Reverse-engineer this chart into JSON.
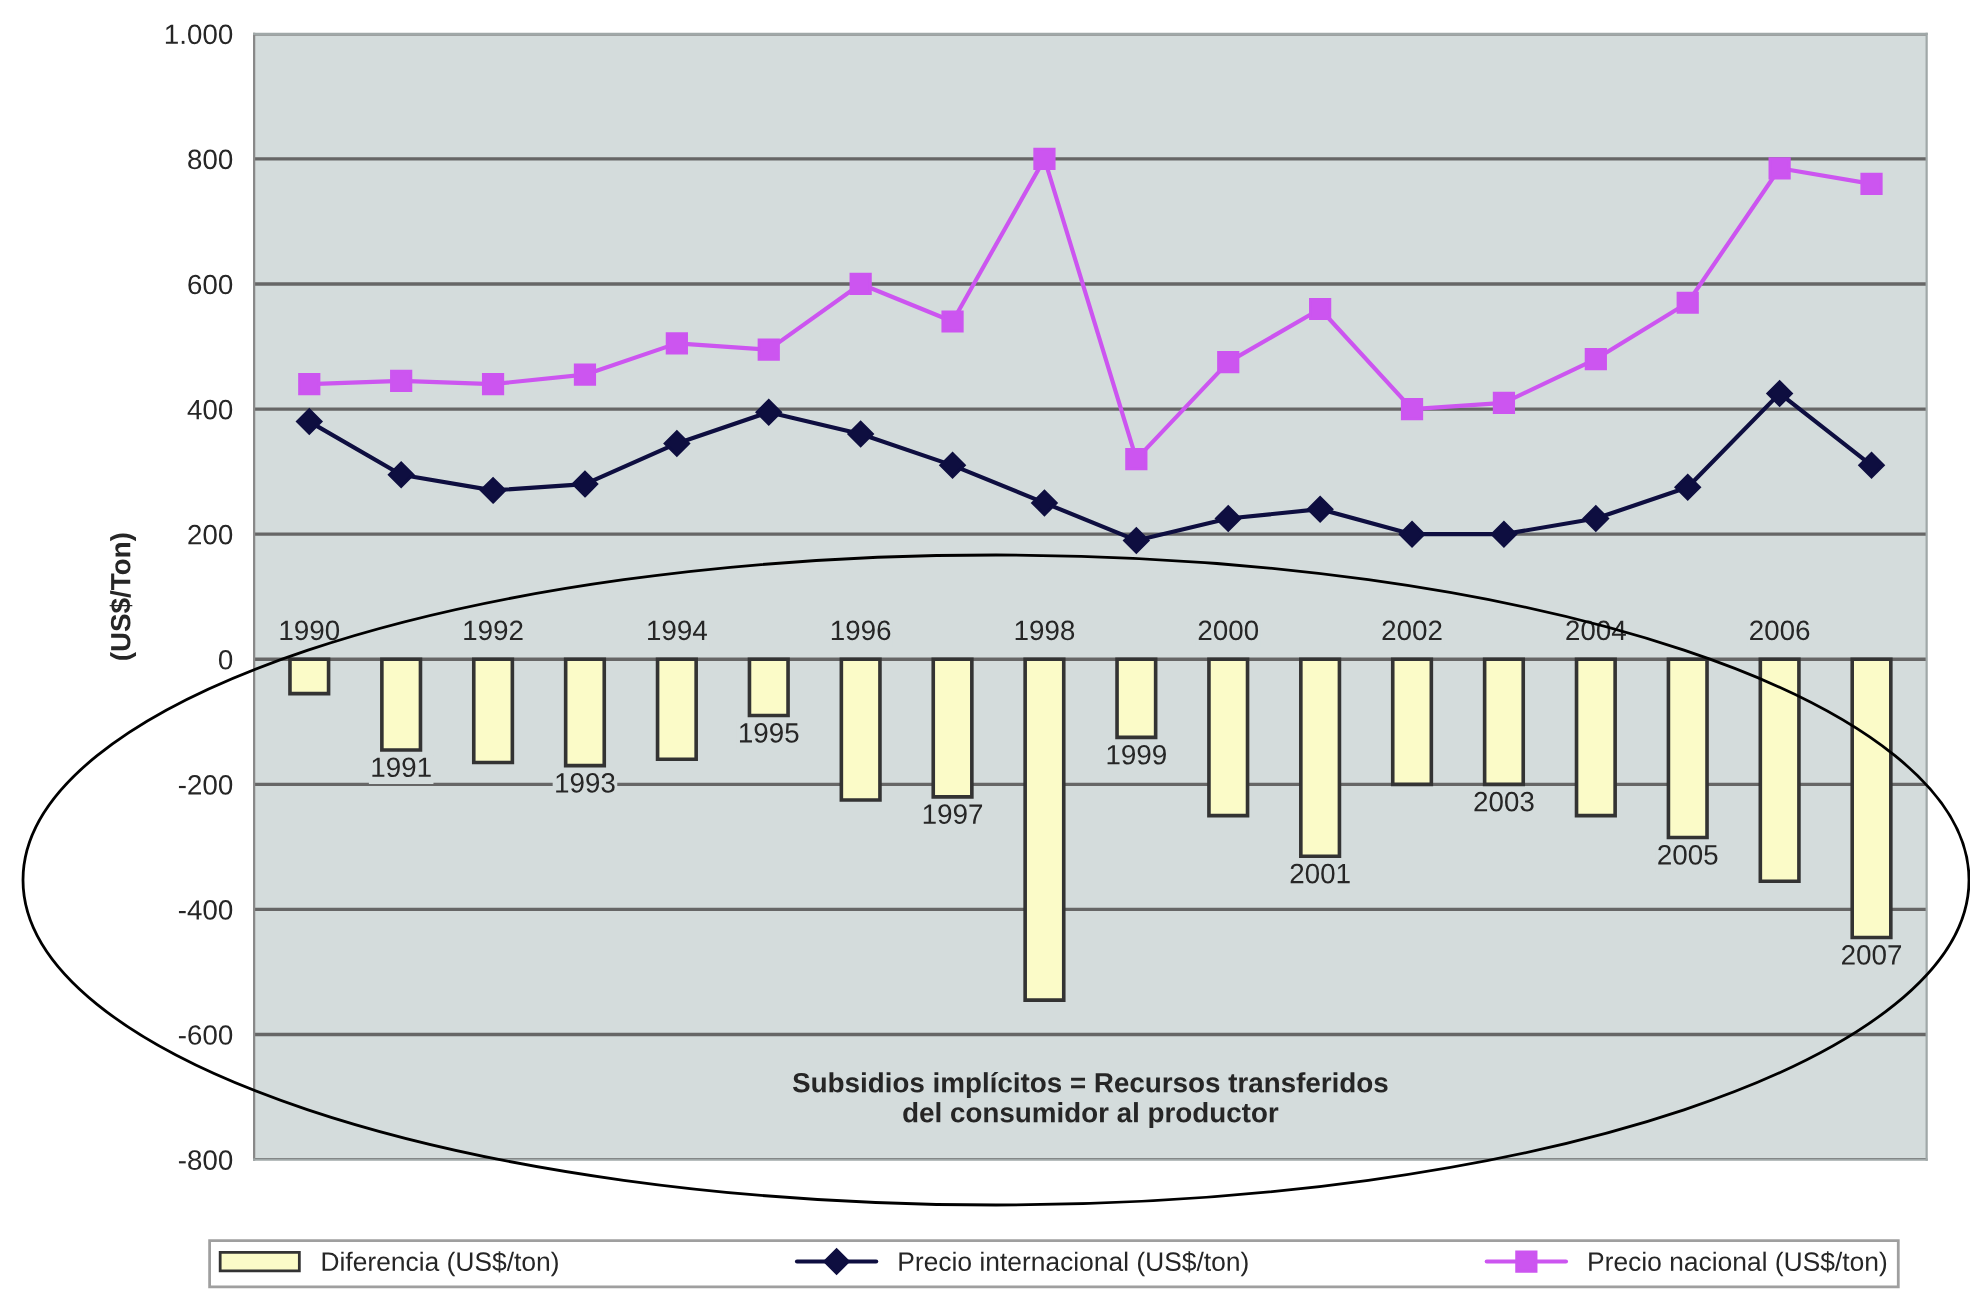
{
  "chart_data": {
    "type": "bar",
    "ylabel": "(US$/Ton)",
    "categories": [
      "1990",
      "1991",
      "1992",
      "1993",
      "1994",
      "1995",
      "1996",
      "1997",
      "1998",
      "1999",
      "2000",
      "2001",
      "2002",
      "2003",
      "2004",
      "2005",
      "2006",
      "2007"
    ],
    "series": [
      {
        "name": "Diferencia (US$/ton)",
        "color": "#fbfbc8",
        "values": [
          -55,
          -145,
          -165,
          -170,
          -160,
          -90,
          -225,
          -220,
          -545,
          -125,
          -250,
          -315,
          -200,
          -200,
          -250,
          -285,
          -355,
          -445
        ]
      },
      {
        "type": "line",
        "name": "Precio internacional (US$/ton)",
        "color": "#0e0e40",
        "marker": "diamond",
        "values": [
          380,
          295,
          270,
          280,
          345,
          395,
          360,
          310,
          250,
          190,
          225,
          240,
          200,
          200,
          225,
          275,
          425,
          310
        ]
      },
      {
        "type": "line",
        "name": "Precio nacional (US$/ton)",
        "color": "#cc55f0",
        "marker": "square",
        "values": [
          440,
          445,
          440,
          455,
          505,
          495,
          600,
          540,
          800,
          320,
          475,
          560,
          400,
          410,
          480,
          570,
          785,
          760
        ]
      }
    ],
    "ylim": [
      -800,
      1000
    ],
    "yticks": [
      -800,
      -600,
      -400,
      -200,
      0,
      200,
      400,
      600,
      800,
      {
        "value": 1000,
        "label": "1.000"
      }
    ],
    "grid": "y",
    "legend": "bottom",
    "annotations": [
      "Subsidios implícitos = Recursos transferidos\ndel consumidor al productor"
    ]
  }
}
